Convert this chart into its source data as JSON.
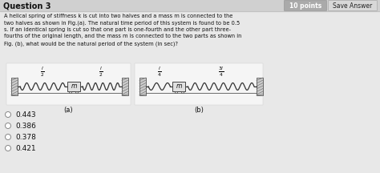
{
  "title": "Question 3",
  "points_label": "10 points",
  "save_answer": "Save Answer",
  "question_text_lines": [
    "A helical spring of stiffness k is cut into two halves and a mass m is connected to the",
    "two halves as shown in Fig.(a). The natural time period of this system is found to be 0.5",
    "s. If an identical spring is cut so that one part is one-fourth and the other part three-",
    "fourths of the original length, and the mass m is connected to the two parts as shown in",
    "Fig. (b), what would be the natural period of the system (in sec)?"
  ],
  "label_a": "(a)",
  "label_b": "(b)",
  "options": [
    "0.443",
    "0.386",
    "0.378",
    "0.421"
  ],
  "bg_color": "#e8e8e8",
  "text_color": "#111111",
  "header_bg": "#e8e8e8",
  "points_bg": "#888888",
  "wall_hatch_color": "#888888",
  "wall_bg": "#c8c8c8",
  "spring_color": "#333333",
  "mass_color": "#e0e0e0",
  "mass_border": "#444444",
  "fig_bg": "#f0f0f0",
  "rail_color": "#555555",
  "figsize": [
    4.74,
    2.16
  ],
  "dpi": 100
}
